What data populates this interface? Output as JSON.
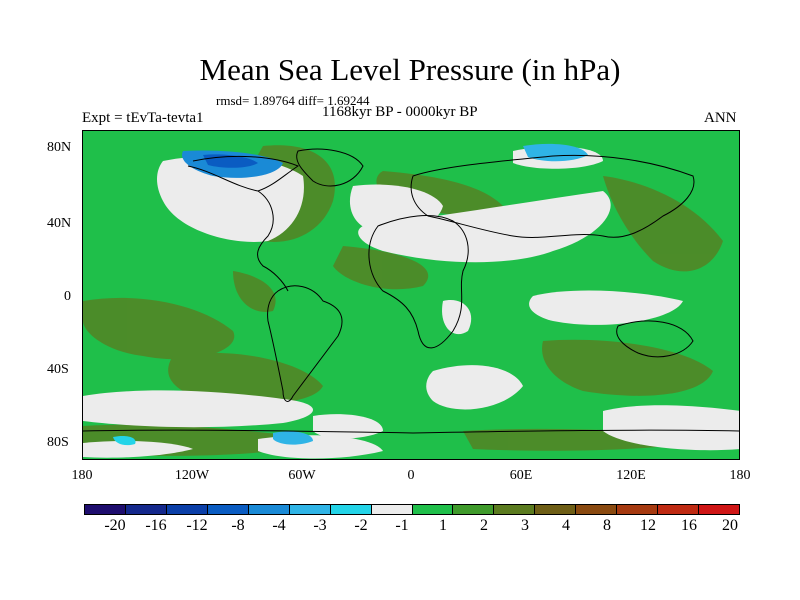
{
  "title": "Mean Sea Level Pressure (in hPa)",
  "stats": "rmsd= 1.89764 diff= 1.69244",
  "experiment": "Expt = tEvTa-tevta1",
  "period": "1168kyr BP - 0000kyr BP",
  "season": "ANN",
  "lat_labels": [
    "80N",
    "40N",
    "0",
    "40S",
    "80S"
  ],
  "lon_labels": [
    "180",
    "120W",
    "60W",
    "0",
    "60E",
    "120E",
    "180"
  ],
  "colorbar": {
    "colors": [
      "#1e0d6e",
      "#14288c",
      "#0b3fa8",
      "#0a5cc2",
      "#1a8ad6",
      "#2fb4e6",
      "#23d4e8",
      "#ececec",
      "#1fbf4a",
      "#3f9a2b",
      "#5b7b1f",
      "#6e5e16",
      "#8a4a10",
      "#a63a10",
      "#bf2a12",
      "#cf1616"
    ],
    "labels": [
      "-20",
      "-16",
      "-12",
      "-8",
      "-4",
      "-3",
      "-2",
      "-1",
      "1",
      "2",
      "3",
      "4",
      "8",
      "12",
      "16",
      "20"
    ]
  },
  "regions": {
    "background": "#1fbf4a",
    "positive_3_4": "#5b7b1f",
    "near_zero": "#ececec",
    "negative": "#2fb4e6"
  }
}
